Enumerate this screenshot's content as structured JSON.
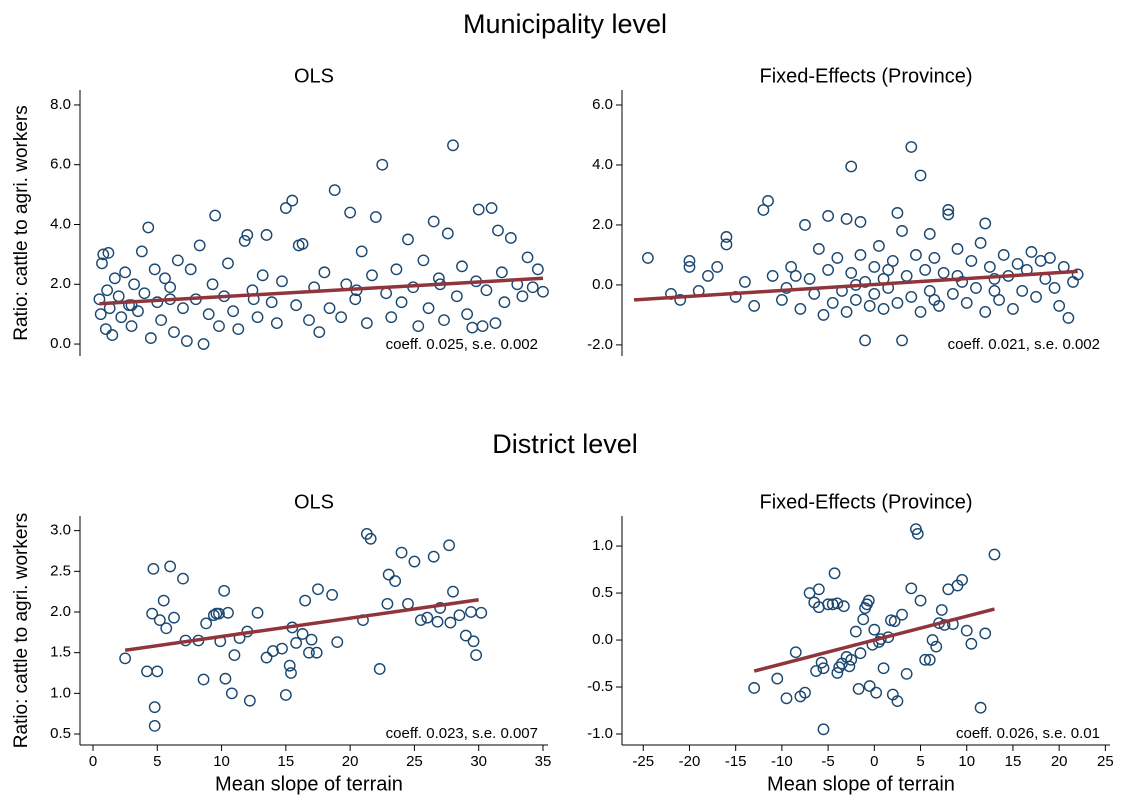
{
  "section_titles": [
    "Municipality level",
    "District level"
  ],
  "chart_data": [
    {
      "type": "scatter",
      "title": "OLS",
      "ylabel": "Ratio: cattle to agri. workers",
      "color": "#1a476f",
      "xlim": [
        -1.01,
        35.39
      ],
      "ylim": [
        -0.4,
        8.5
      ],
      "yticks": [
        {
          "value": 0,
          "label": "0.0"
        },
        {
          "value": 2,
          "label": "2.0"
        },
        {
          "value": 4,
          "label": "4.0"
        },
        {
          "value": 6,
          "label": "6.0"
        },
        {
          "value": 8,
          "label": "8.0"
        }
      ],
      "x": [
        0.5,
        0.6,
        0.7,
        0.8,
        1.0,
        1.1,
        1.2,
        1.3,
        1.5,
        1.7,
        2.0,
        2.2,
        2.5,
        2.8,
        3.0,
        3.2,
        3.5,
        3.8,
        4.0,
        4.3,
        4.5,
        4.8,
        5.0,
        5.3,
        5.6,
        6.0,
        6.3,
        6.6,
        7.0,
        7.3,
        7.6,
        8.0,
        8.3,
        8.6,
        9.0,
        9.3,
        9.5,
        9.8,
        10.2,
        10.5,
        10.9,
        11.3,
        11.8,
        12.0,
        12.4,
        12.8,
        13.2,
        13.5,
        13.9,
        14.3,
        14.7,
        15.0,
        15.5,
        15.8,
        16.0,
        16.3,
        16.8,
        17.2,
        17.6,
        18.0,
        18.4,
        18.8,
        19.3,
        19.7,
        20.0,
        20.4,
        20.9,
        21.3,
        21.7,
        22.0,
        22.5,
        22.8,
        23.2,
        23.6,
        24.0,
        24.5,
        24.9,
        25.3,
        25.7,
        26.1,
        26.5,
        26.9,
        27.3,
        27.6,
        28.0,
        28.3,
        28.7,
        29.1,
        29.5,
        29.8,
        30.0,
        30.3,
        30.6,
        31.0,
        31.3,
        31.5,
        31.8,
        32.0,
        32.5,
        33.0,
        33.4,
        33.8,
        34.2,
        34.6,
        35.0,
        27.0,
        20.5,
        12.5,
        6.0,
        3.0
      ],
      "values": [
        1.5,
        1.0,
        2.7,
        3.0,
        0.5,
        1.8,
        3.05,
        1.2,
        0.3,
        2.2,
        1.6,
        0.9,
        2.4,
        1.3,
        0.6,
        2.0,
        1.1,
        3.1,
        1.7,
        3.9,
        0.2,
        2.5,
        1.4,
        0.8,
        2.2,
        1.9,
        0.4,
        2.8,
        1.2,
        0.1,
        2.5,
        1.5,
        3.3,
        0.0,
        1.0,
        2.0,
        4.3,
        0.6,
        1.6,
        2.7,
        1.1,
        0.5,
        3.45,
        3.65,
        1.8,
        0.9,
        2.3,
        3.65,
        1.4,
        0.7,
        2.1,
        4.55,
        4.8,
        1.3,
        3.3,
        3.35,
        0.8,
        1.9,
        0.4,
        2.4,
        1.2,
        5.15,
        0.9,
        2.0,
        4.4,
        1.5,
        3.1,
        0.7,
        2.3,
        4.25,
        6.0,
        1.7,
        0.9,
        2.5,
        1.4,
        3.5,
        1.9,
        0.6,
        2.8,
        1.2,
        4.1,
        2.2,
        0.8,
        3.7,
        6.65,
        1.6,
        2.6,
        1.0,
        0.55,
        2.1,
        4.5,
        0.6,
        1.8,
        4.55,
        0.7,
        3.8,
        2.4,
        1.4,
        3.55,
        2.0,
        1.6,
        2.9,
        1.9,
        2.5,
        1.75,
        2.0,
        1.8,
        1.5,
        1.5,
        1.3
      ],
      "fit": {
        "color": "#90353b",
        "x": [
          0.5,
          35
        ],
        "values": [
          1.35,
          2.2
        ]
      },
      "annotation": "coeff. 0.025, s.e. 0.002"
    },
    {
      "type": "scatter",
      "title": "Fixed-Effects (Province)",
      "color": "#1a476f",
      "xlim": [
        -27.3,
        25.5
      ],
      "ylim": [
        -2.37,
        6.5
      ],
      "yticks": [
        {
          "value": -2,
          "label": "-2.0"
        },
        {
          "value": 0,
          "label": "0.0"
        },
        {
          "value": 2,
          "label": "2.0"
        },
        {
          "value": 4,
          "label": "4.0"
        },
        {
          "value": 6,
          "label": "6.0"
        }
      ],
      "x": [
        -24.5,
        -22,
        -21,
        -20,
        -20,
        -19,
        -18,
        -17,
        -16,
        -16,
        -15,
        -14,
        -13,
        -12,
        -11.5,
        -11,
        -10,
        -9,
        -8,
        -7.5,
        -7,
        -6.5,
        -6,
        -5.5,
        -5,
        -5,
        -4.5,
        -4,
        -3.5,
        -3,
        -3,
        -2.5,
        -2.5,
        -2,
        -1.5,
        -1.5,
        -1,
        -1,
        -0.5,
        0,
        0,
        0.5,
        1,
        1,
        1.5,
        2,
        2.5,
        2.5,
        3,
        3,
        3.5,
        4,
        4,
        4.5,
        5,
        5,
        5.5,
        6,
        6,
        6.5,
        7,
        7.5,
        8,
        8,
        8.5,
        9,
        9.5,
        10,
        10.5,
        11,
        11.5,
        12,
        12,
        12.5,
        13,
        13.5,
        14,
        14.5,
        15,
        15.5,
        16,
        16.5,
        17,
        17.5,
        18,
        18.5,
        19,
        19.5,
        20,
        20.5,
        21,
        21.5,
        22,
        -9.5,
        -8.5,
        -2,
        1.5,
        6.5,
        9,
        13
      ],
      "values": [
        0.9,
        -0.3,
        -0.5,
        0.8,
        0.6,
        -0.2,
        0.3,
        0.6,
        1.6,
        1.35,
        -0.4,
        0.1,
        -0.7,
        2.5,
        2.8,
        0.3,
        -0.5,
        0.6,
        -0.8,
        2.0,
        0.2,
        -0.3,
        1.2,
        -1.0,
        2.3,
        0.5,
        -0.6,
        0.9,
        -0.2,
        2.2,
        -0.9,
        3.95,
        0.4,
        -0.5,
        2.1,
        1.0,
        -1.85,
        0.1,
        -0.7,
        0.6,
        -0.3,
        1.3,
        -0.8,
        0.2,
        -0.1,
        0.8,
        2.4,
        -0.6,
        -1.85,
        1.8,
        0.3,
        4.6,
        -0.4,
        1.0,
        3.65,
        -0.9,
        0.5,
        1.7,
        -0.2,
        0.9,
        -0.7,
        0.4,
        2.5,
        2.35,
        -0.3,
        1.2,
        0.1,
        -0.6,
        0.8,
        -0.1,
        1.4,
        2.05,
        -0.9,
        0.6,
        0.2,
        -0.5,
        1.0,
        0.3,
        -0.8,
        0.7,
        -0.2,
        0.5,
        1.1,
        -0.4,
        0.8,
        0.2,
        0.9,
        -0.1,
        -0.7,
        0.6,
        -1.1,
        0.1,
        0.35,
        -0.1,
        0.3,
        0.0,
        0.5,
        -0.5,
        0.3,
        -0.2
      ],
      "fit": {
        "color": "#90353b",
        "x": [
          -26,
          22
        ],
        "values": [
          -0.5,
          0.45
        ]
      },
      "annotation": "coeff. 0.021, s.e. 0.002"
    },
    {
      "type": "scatter",
      "title": "OLS",
      "ylabel": "Ratio: cattle to agri. workers",
      "xlabel": "Mean slope of terrain",
      "color": "#1a476f",
      "xlim": [
        -1.01,
        35.39
      ],
      "ylim": [
        0.365,
        3.18
      ],
      "xticks": [
        0,
        5,
        10,
        15,
        20,
        25,
        30,
        35
      ],
      "yticks": [
        {
          "value": 0.5,
          "label": "0.5"
        },
        {
          "value": 1,
          "label": "1.0"
        },
        {
          "value": 1.5,
          "label": "1.5"
        },
        {
          "value": 2,
          "label": "2.0"
        },
        {
          "value": 2.5,
          "label": "2.5"
        },
        {
          "value": 3,
          "label": "3.0"
        }
      ],
      "x": [
        2.5,
        4.2,
        4.6,
        4.7,
        4.8,
        4.8,
        5,
        5.2,
        5.5,
        5.7,
        6,
        6.3,
        7,
        7.2,
        8.2,
        8.6,
        8.8,
        9.4,
        9.6,
        9.8,
        9.9,
        10.2,
        10.3,
        10.5,
        10.8,
        11,
        11.4,
        12,
        12.2,
        12.8,
        13.5,
        14,
        14.7,
        15,
        15.3,
        15.4,
        15.5,
        15.8,
        16.3,
        16.5,
        16.8,
        17.4,
        17.5,
        17,
        18.6,
        19,
        21,
        21.3,
        21.6,
        22.3,
        22.9,
        23,
        23.5,
        24,
        24.5,
        25,
        25.5,
        26,
        26.5,
        26.8,
        27,
        27.7,
        27.8,
        28,
        28.5,
        29,
        29.4,
        29.6,
        29.8,
        30.2
      ],
      "values": [
        1.43,
        1.27,
        1.98,
        2.53,
        0.83,
        0.6,
        1.27,
        1.9,
        2.14,
        1.8,
        2.56,
        1.93,
        2.41,
        1.65,
        1.65,
        1.17,
        1.86,
        1.96,
        1.98,
        1.98,
        1.64,
        2.26,
        1.18,
        1.99,
        1.0,
        1.47,
        1.68,
        1.76,
        0.91,
        1.99,
        1.44,
        1.52,
        1.55,
        0.98,
        1.34,
        1.25,
        1.81,
        1.62,
        1.73,
        2.14,
        1.5,
        1.5,
        2.28,
        1.66,
        2.21,
        1.63,
        1.9,
        2.96,
        2.9,
        1.3,
        2.1,
        2.46,
        2.38,
        2.73,
        2.1,
        2.62,
        1.9,
        1.93,
        2.68,
        1.88,
        2.05,
        2.82,
        1.87,
        2.25,
        1.96,
        1.71,
        2.0,
        1.64,
        1.47,
        1.99
      ],
      "fit": {
        "color": "#90353b",
        "x": [
          2.5,
          30
        ],
        "values": [
          1.53,
          2.15
        ]
      },
      "annotation": "coeff. 0.023, s.e. 0.007"
    },
    {
      "type": "scatter",
      "title": "Fixed-Effects (Province)",
      "xlabel": "Mean slope of terrain",
      "color": "#1a476f",
      "xlim": [
        -27.3,
        25.5
      ],
      "ylim": [
        -1.117,
        1.32
      ],
      "xticks": [
        -25,
        -20,
        -15,
        -10,
        -5,
        0,
        5,
        10,
        15,
        20,
        25
      ],
      "yticks": [
        {
          "value": -1,
          "label": "-1.0"
        },
        {
          "value": -0.5,
          "label": "-0.5"
        },
        {
          "value": 0,
          "label": "0.0"
        },
        {
          "value": 0.5,
          "label": "0.5"
        },
        {
          "value": 1,
          "label": "1.0"
        }
      ],
      "x": [
        -13,
        -10.5,
        -9.5,
        -8.5,
        -8,
        -7.5,
        -7,
        -6.5,
        -6.3,
        -6,
        -6,
        -5.7,
        -5.5,
        -5.5,
        -5,
        -4.5,
        -4.3,
        -4,
        -4,
        -3.8,
        -3.5,
        -3.3,
        -3,
        -2.7,
        -2.5,
        -2,
        -1.7,
        -1.5,
        -1.2,
        -1,
        -0.8,
        -0.6,
        -0.5,
        -0.2,
        0,
        0.2,
        0.5,
        0.7,
        1,
        1.5,
        1.8,
        2,
        2.2,
        2.5,
        3,
        3.5,
        4,
        4.5,
        4.7,
        5,
        5.5,
        6,
        6.3,
        6.7,
        7,
        7.3,
        7.6,
        8,
        8.5,
        9,
        9.5,
        10,
        10.5,
        11.5,
        12,
        13
      ],
      "values": [
        -0.51,
        -0.41,
        -0.62,
        -0.13,
        -0.6,
        -0.56,
        0.5,
        0.4,
        -0.33,
        0.35,
        0.54,
        -0.24,
        -0.3,
        -0.95,
        0.38,
        0.38,
        0.71,
        -0.35,
        0.39,
        -0.29,
        -0.25,
        0.36,
        -0.18,
        -0.28,
        -0.21,
        0.09,
        -0.52,
        -0.14,
        0.22,
        0.34,
        0.38,
        0.42,
        -0.49,
        -0.05,
        0.11,
        -0.56,
        -0.02,
        0.01,
        -0.3,
        0.03,
        0.21,
        -0.58,
        0.2,
        -0.65,
        0.27,
        -0.36,
        0.55,
        1.18,
        1.13,
        0.42,
        -0.21,
        -0.21,
        0.0,
        -0.07,
        0.18,
        0.32,
        0.16,
        0.54,
        0.17,
        0.58,
        0.64,
        0.1,
        -0.04,
        -0.72,
        0.07,
        0.91
      ],
      "fit": {
        "color": "#90353b",
        "x": [
          -13,
          13
        ],
        "values": [
          -0.33,
          0.33
        ]
      },
      "annotation": "coeff. 0.026, s.e. 0.01"
    }
  ]
}
